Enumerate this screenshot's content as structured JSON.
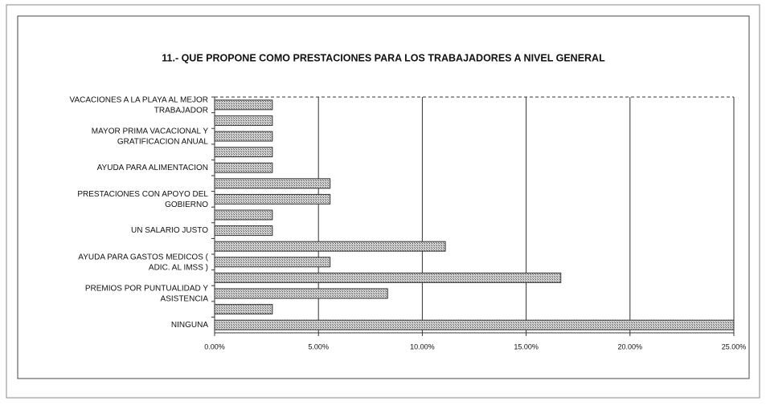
{
  "chart_data": {
    "type": "barh",
    "title": "11.- QUE PROPONE COMO PRESTACIONES PARA LOS TRABAJADORES A NIVEL GENERAL",
    "categories": [
      "VACACIONES A LA PLAYA AL MEJOR\nTRABAJADOR",
      null,
      "MAYOR PRIMA VACACIONAL Y\nGRATIFICACION ANUAL",
      null,
      "AYUDA PARA ALIMENTACION",
      null,
      "PRESTACIONES CON APOYO DEL\nGOBIERNO",
      null,
      "UN SALARIO JUSTO",
      null,
      "AYUDA PARA GASTOS MEDICOS (\nADIC. AL IMSS )",
      null,
      "PREMIOS POR PUNTUALIDAD Y\nASISTENCIA",
      null,
      "NINGUNA"
    ],
    "values": [
      2.78,
      2.78,
      2.78,
      2.78,
      2.78,
      5.56,
      5.56,
      2.78,
      2.78,
      11.11,
      5.56,
      16.67,
      8.33,
      2.78,
      25
    ],
    "color": "#8c8c8c",
    "xlim": [
      0,
      25
    ],
    "xticks": [
      {
        "value": 0,
        "label": "0.00%"
      },
      {
        "value": 5,
        "label": "5.00%"
      },
      {
        "value": 10,
        "label": "10.00%"
      },
      {
        "value": 15,
        "label": "15.00%"
      },
      {
        "value": 20,
        "label": "20.00%"
      },
      {
        "value": 25,
        "label": "25.00%"
      }
    ],
    "grid": true
  }
}
